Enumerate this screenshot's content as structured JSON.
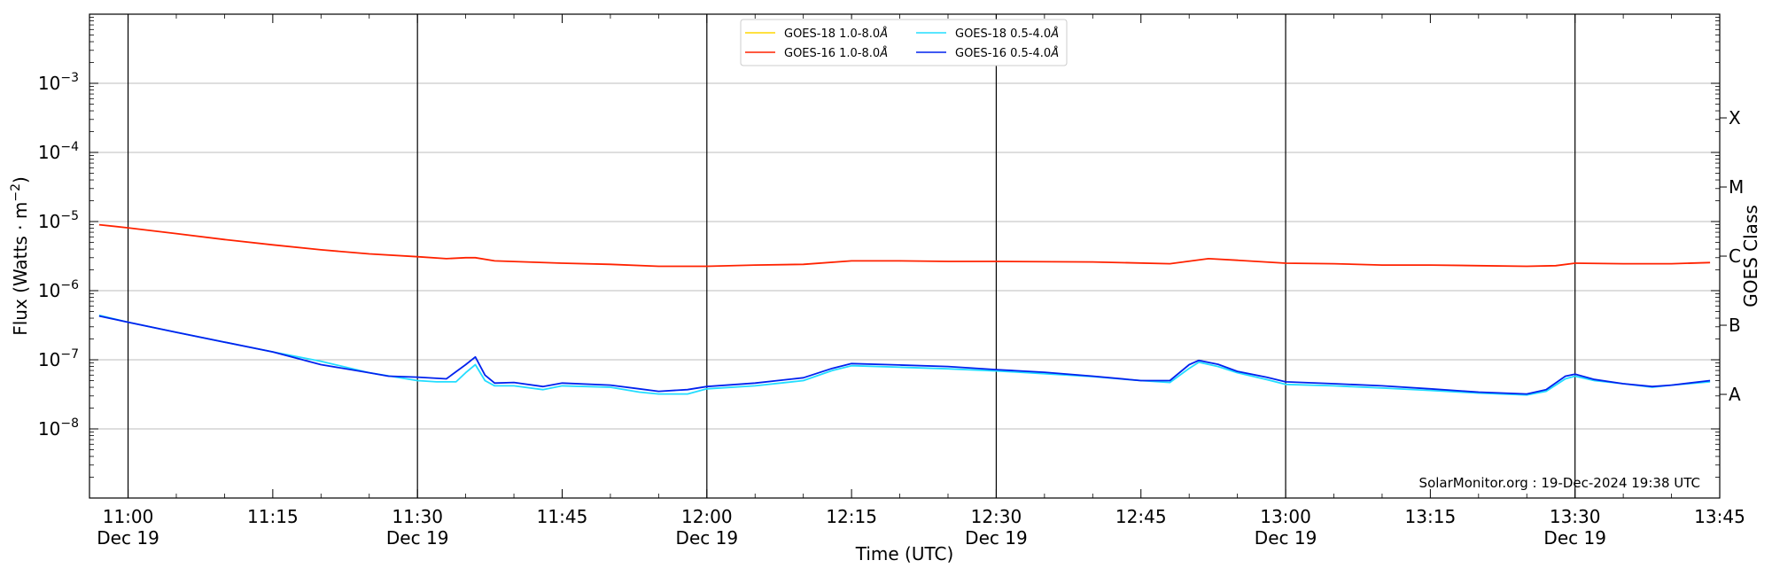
{
  "chart_data": {
    "type": "line",
    "xlabel": "Time (UTC)",
    "ylabel": "Flux (Watts · m",
    "ylabel_sup": "−2",
    "ylabel_close": ")",
    "y2label": "GOES Class",
    "yscale": "log",
    "xlim_minutes": [
      656,
      825
    ],
    "ylim": [
      1e-09,
      0.01
    ],
    "grid": "horizontal at decades",
    "legend_position": "upper center",
    "credit": "SolarMonitor.org : 19-Dec-2024 19:38 UTC",
    "y_ticks": [
      {
        "value": 1e-08,
        "base": "10",
        "exp": "−8"
      },
      {
        "value": 1e-07,
        "base": "10",
        "exp": "−7"
      },
      {
        "value": 1e-06,
        "base": "10",
        "exp": "−6"
      },
      {
        "value": 1e-05,
        "base": "10",
        "exp": "−5"
      },
      {
        "value": 0.0001,
        "base": "10",
        "exp": "−4"
      },
      {
        "value": 0.001,
        "base": "10",
        "exp": "−3"
      }
    ],
    "class_labels": [
      {
        "label": "A",
        "value": 3.16e-08
      },
      {
        "label": "B",
        "value": 3.16e-07
      },
      {
        "label": "C",
        "value": 3.16e-06
      },
      {
        "label": "M",
        "value": 3.16e-05
      },
      {
        "label": "X",
        "value": 0.000316
      }
    ],
    "x_ticks": [
      {
        "time": "11:00",
        "date": "Dec 19",
        "minute": 660
      },
      {
        "time": "11:15",
        "date": "",
        "minute": 675
      },
      {
        "time": "11:30",
        "date": "Dec 19",
        "minute": 690
      },
      {
        "time": "11:45",
        "date": "",
        "minute": 705
      },
      {
        "time": "12:00",
        "date": "Dec 19",
        "minute": 720
      },
      {
        "time": "12:15",
        "date": "",
        "minute": 735
      },
      {
        "time": "12:30",
        "date": "Dec 19",
        "minute": 750
      },
      {
        "time": "12:45",
        "date": "",
        "minute": 765
      },
      {
        "time": "13:00",
        "date": "Dec 19",
        "minute": 780
      },
      {
        "time": "13:15",
        "date": "",
        "minute": 795
      },
      {
        "time": "13:30",
        "date": "Dec 19",
        "minute": 810
      },
      {
        "time": "13:45",
        "date": "",
        "minute": 825
      }
    ],
    "vertical_lines_minutes": [
      660,
      690,
      720,
      750,
      780,
      810
    ],
    "series": [
      {
        "name": "GOES-18 1.0-8.0",
        "unit": "Å",
        "color": "#ffd700",
        "points": []
      },
      {
        "name": "GOES-16 1.0-8.0",
        "unit": "Å",
        "color": "#ff2200",
        "points": [
          [
            "10:57",
            9e-06
          ],
          [
            "11:00",
            8.1e-06
          ],
          [
            "11:05",
            6.7e-06
          ],
          [
            "11:10",
            5.5e-06
          ],
          [
            "11:15",
            4.6e-06
          ],
          [
            "11:20",
            3.9e-06
          ],
          [
            "11:25",
            3.4e-06
          ],
          [
            "11:30",
            3.1e-06
          ],
          [
            "11:33",
            2.9e-06
          ],
          [
            "11:35",
            3e-06
          ],
          [
            "11:36",
            3e-06
          ],
          [
            "11:38",
            2.7e-06
          ],
          [
            "11:45",
            2.5e-06
          ],
          [
            "11:50",
            2.4e-06
          ],
          [
            "11:55",
            2.25e-06
          ],
          [
            "12:00",
            2.25e-06
          ],
          [
            "12:05",
            2.35e-06
          ],
          [
            "12:10",
            2.4e-06
          ],
          [
            "12:15",
            2.7e-06
          ],
          [
            "12:20",
            2.7e-06
          ],
          [
            "12:25",
            2.65e-06
          ],
          [
            "12:30",
            2.65e-06
          ],
          [
            "12:40",
            2.6e-06
          ],
          [
            "12:48",
            2.45e-06
          ],
          [
            "12:52",
            2.9e-06
          ],
          [
            "12:55",
            2.75e-06
          ],
          [
            "13:00",
            2.5e-06
          ],
          [
            "13:05",
            2.45e-06
          ],
          [
            "13:10",
            2.35e-06
          ],
          [
            "13:15",
            2.35e-06
          ],
          [
            "13:20",
            2.3e-06
          ],
          [
            "13:25",
            2.25e-06
          ],
          [
            "13:28",
            2.3e-06
          ],
          [
            "13:30",
            2.5e-06
          ],
          [
            "13:35",
            2.45e-06
          ],
          [
            "13:40",
            2.45e-06
          ],
          [
            "13:44",
            2.55e-06
          ]
        ]
      },
      {
        "name": "GOES-18 0.5-4.0",
        "unit": "Å",
        "color": "#22ddff",
        "points": [
          [
            "10:57",
            4.4e-07
          ],
          [
            "11:00",
            3.5e-07
          ],
          [
            "11:05",
            2.5e-07
          ],
          [
            "11:10",
            1.8e-07
          ],
          [
            "11:15",
            1.3e-07
          ],
          [
            "11:20",
            9.5e-08
          ],
          [
            "11:25",
            6.5e-08
          ],
          [
            "11:30",
            5e-08
          ],
          [
            "11:32",
            4.8e-08
          ],
          [
            "11:34",
            4.8e-08
          ],
          [
            "11:35",
            6.5e-08
          ],
          [
            "11:36",
            8.5e-08
          ],
          [
            "11:37",
            5e-08
          ],
          [
            "11:38",
            4.2e-08
          ],
          [
            "11:40",
            4.2e-08
          ],
          [
            "11:43",
            3.7e-08
          ],
          [
            "11:45",
            4.2e-08
          ],
          [
            "11:50",
            4e-08
          ],
          [
            "11:53",
            3.4e-08
          ],
          [
            "11:55",
            3.2e-08
          ],
          [
            "11:58",
            3.2e-08
          ],
          [
            "12:00",
            3.8e-08
          ],
          [
            "12:05",
            4.2e-08
          ],
          [
            "12:10",
            5e-08
          ],
          [
            "12:13",
            7e-08
          ],
          [
            "12:15",
            8.2e-08
          ],
          [
            "12:20",
            7.8e-08
          ],
          [
            "12:25",
            7.4e-08
          ],
          [
            "12:30",
            6.9e-08
          ],
          [
            "12:35",
            6.3e-08
          ],
          [
            "12:40",
            5.7e-08
          ],
          [
            "12:45",
            5e-08
          ],
          [
            "12:48",
            4.7e-08
          ],
          [
            "12:50",
            7.5e-08
          ],
          [
            "12:51",
            9.2e-08
          ],
          [
            "12:53",
            8e-08
          ],
          [
            "12:55",
            6.5e-08
          ],
          [
            "12:58",
            5.2e-08
          ],
          [
            "13:00",
            4.4e-08
          ],
          [
            "13:05",
            4.2e-08
          ],
          [
            "13:10",
            3.9e-08
          ],
          [
            "13:15",
            3.6e-08
          ],
          [
            "13:20",
            3.3e-08
          ],
          [
            "13:25",
            3.1e-08
          ],
          [
            "13:27",
            3.5e-08
          ],
          [
            "13:29",
            5.3e-08
          ],
          [
            "13:30",
            5.8e-08
          ],
          [
            "13:32",
            5e-08
          ],
          [
            "13:35",
            4.5e-08
          ],
          [
            "13:38",
            4e-08
          ],
          [
            "13:40",
            4.3e-08
          ],
          [
            "13:44",
            4.8e-08
          ]
        ]
      },
      {
        "name": "GOES-16 0.5-4.0",
        "unit": "Å",
        "color": "#0022ee",
        "points": [
          [
            "10:57",
            4.3e-07
          ],
          [
            "11:00",
            3.5e-07
          ],
          [
            "11:05",
            2.5e-07
          ],
          [
            "11:10",
            1.8e-07
          ],
          [
            "11:15",
            1.3e-07
          ],
          [
            "11:20",
            8.5e-08
          ],
          [
            "11:25",
            6.5e-08
          ],
          [
            "11:27",
            5.8e-08
          ],
          [
            "11:30",
            5.6e-08
          ],
          [
            "11:33",
            5.3e-08
          ],
          [
            "11:35",
            8.5e-08
          ],
          [
            "11:36",
            1.1e-07
          ],
          [
            "11:37",
            6e-08
          ],
          [
            "11:38",
            4.6e-08
          ],
          [
            "11:40",
            4.7e-08
          ],
          [
            "11:43",
            4.1e-08
          ],
          [
            "11:45",
            4.6e-08
          ],
          [
            "11:50",
            4.3e-08
          ],
          [
            "11:53",
            3.8e-08
          ],
          [
            "11:55",
            3.5e-08
          ],
          [
            "11:58",
            3.7e-08
          ],
          [
            "12:00",
            4.1e-08
          ],
          [
            "12:05",
            4.6e-08
          ],
          [
            "12:10",
            5.5e-08
          ],
          [
            "12:13",
            7.5e-08
          ],
          [
            "12:15",
            8.8e-08
          ],
          [
            "12:20",
            8.4e-08
          ],
          [
            "12:25",
            8e-08
          ],
          [
            "12:30",
            7.2e-08
          ],
          [
            "12:35",
            6.6e-08
          ],
          [
            "12:40",
            5.8e-08
          ],
          [
            "12:45",
            5e-08
          ],
          [
            "12:48",
            5e-08
          ],
          [
            "12:50",
            8.5e-08
          ],
          [
            "12:51",
            9.8e-08
          ],
          [
            "12:53",
            8.6e-08
          ],
          [
            "12:55",
            6.8e-08
          ],
          [
            "12:58",
            5.6e-08
          ],
          [
            "13:00",
            4.8e-08
          ],
          [
            "13:05",
            4.5e-08
          ],
          [
            "13:10",
            4.2e-08
          ],
          [
            "13:15",
            3.8e-08
          ],
          [
            "13:20",
            3.4e-08
          ],
          [
            "13:25",
            3.2e-08
          ],
          [
            "13:27",
            3.7e-08
          ],
          [
            "13:29",
            5.8e-08
          ],
          [
            "13:30",
            6.2e-08
          ],
          [
            "13:32",
            5.2e-08
          ],
          [
            "13:35",
            4.5e-08
          ],
          [
            "13:38",
            4.1e-08
          ],
          [
            "13:40",
            4.3e-08
          ],
          [
            "13:44",
            5e-08
          ]
        ]
      }
    ]
  }
}
